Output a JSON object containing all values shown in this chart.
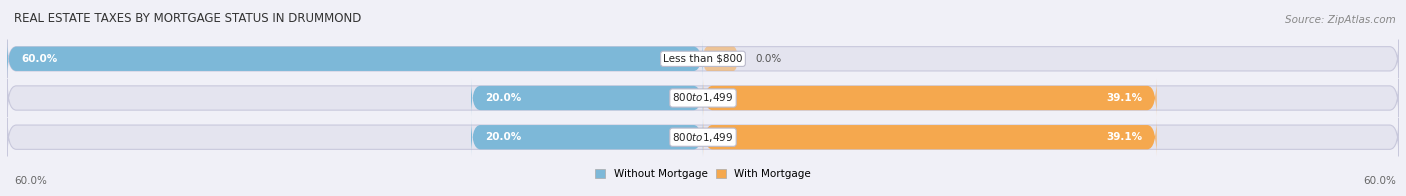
{
  "title": "REAL ESTATE TAXES BY MORTGAGE STATUS IN DRUMMOND",
  "source": "Source: ZipAtlas.com",
  "rows": [
    {
      "label": "Less than $800",
      "without_mortgage": 60.0,
      "with_mortgage": 0.0
    },
    {
      "label": "$800 to $1,499",
      "without_mortgage": 20.0,
      "with_mortgage": 39.1
    },
    {
      "label": "$800 to $1,499",
      "without_mortgage": 20.0,
      "with_mortgage": 39.1
    }
  ],
  "color_without": "#7db8d8",
  "color_with": "#f5a84e",
  "color_bg_bar": "#e4e4ef",
  "color_bg_chart": "#f0f0f7",
  "max_val": 60.0,
  "legend_without": "Without Mortgage",
  "legend_with": "With Mortgage",
  "bottom_left": "60.0%",
  "bottom_right": "60.0%",
  "title_fontsize": 8.5,
  "label_fontsize": 7.5,
  "bar_label_fontsize": 7.5,
  "source_fontsize": 7.5
}
